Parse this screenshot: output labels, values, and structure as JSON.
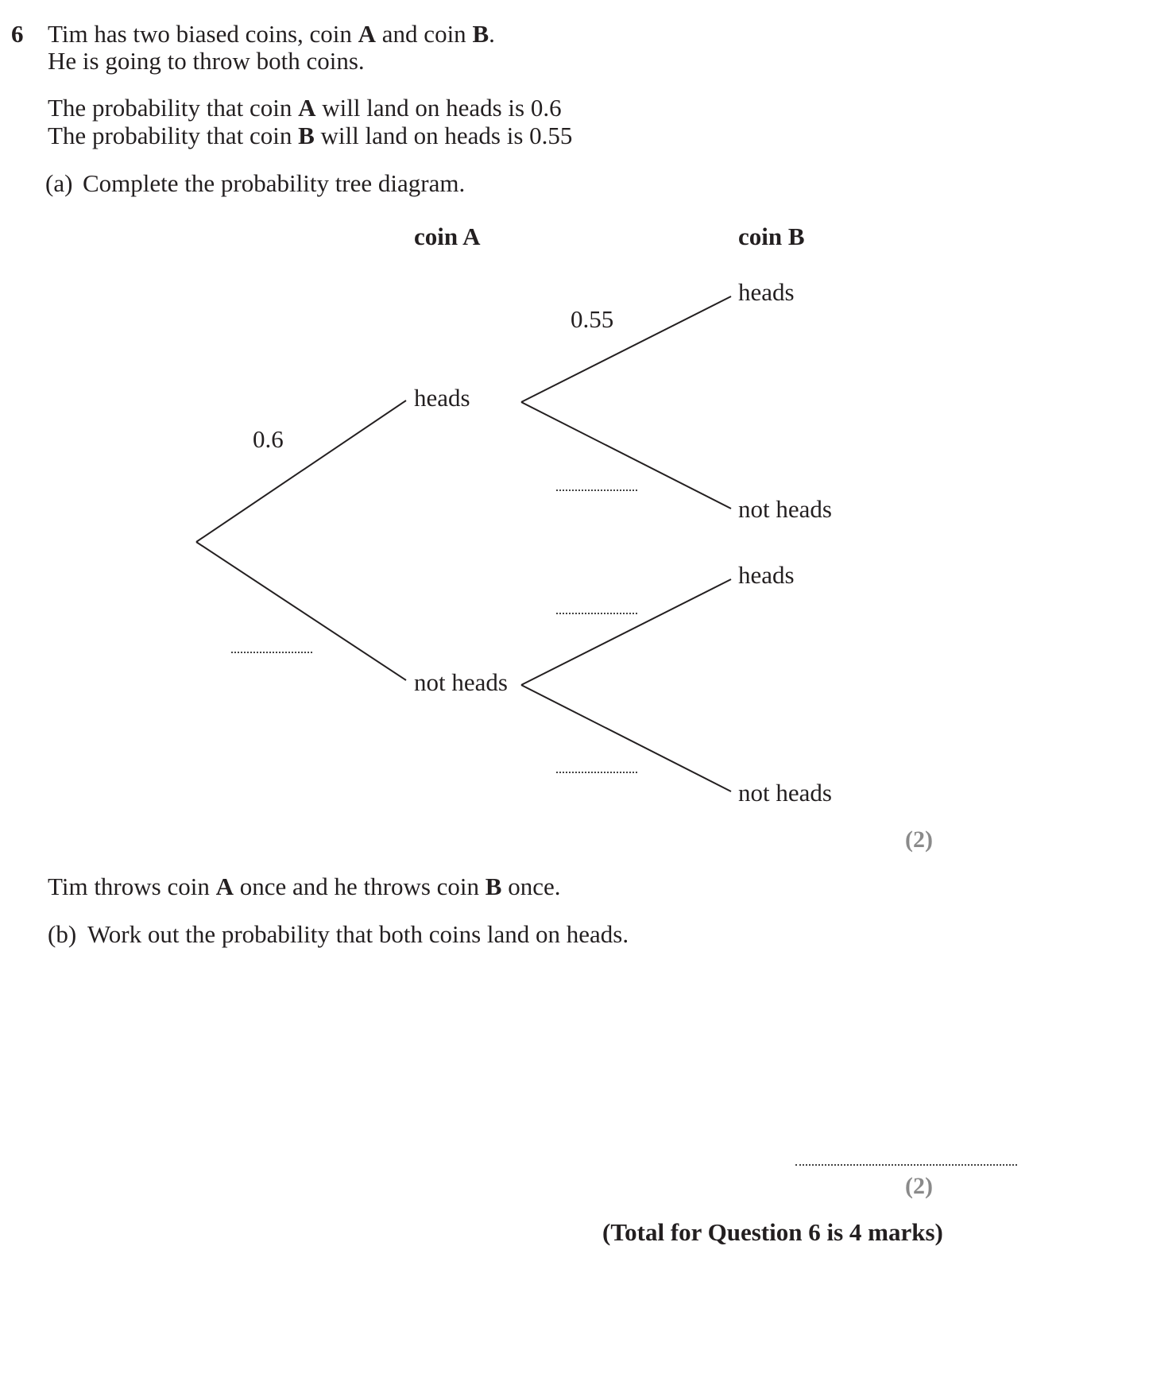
{
  "question": {
    "number": "6",
    "intro_line1": {
      "pre": "Tim has two biased coins, coin ",
      "coin_a": "A",
      "mid": " and coin ",
      "coin_b": "B",
      "post": "."
    },
    "intro_line2": "He is going to throw both coins.",
    "prob_a_line": {
      "pre": "The probability that coin ",
      "coin": "A",
      "post": " will land on heads is 0.6"
    },
    "prob_b_line": {
      "pre": "The probability that coin ",
      "coin": "B",
      "post": " will land on heads is 0.55"
    }
  },
  "part_a": {
    "label": "(a)",
    "text": "Complete the probability tree diagram.",
    "marks": "(2)"
  },
  "tree": {
    "header_coin_a": "coin A",
    "header_coin_b": "coin B",
    "first_outcome_heads": "heads",
    "first_outcome_not_heads": "not heads",
    "second_outcome_heads_1": "heads",
    "second_outcome_not_heads_1": "not heads",
    "second_outcome_heads_2": "heads",
    "second_outcome_not_heads_2": "not heads",
    "prob_a_heads": "0.6",
    "prob_b_heads_given_heads": "0.55"
  },
  "between_parts": {
    "pre": "Tim throws coin ",
    "coin_a": "A",
    "mid": " once and he throws coin ",
    "coin_b": "B",
    "post": " once."
  },
  "part_b": {
    "label": "(b)",
    "text": "Work out the probability that both coins land on heads.",
    "marks": "(2)"
  },
  "total": "(Total for Question 6 is 4 marks)"
}
